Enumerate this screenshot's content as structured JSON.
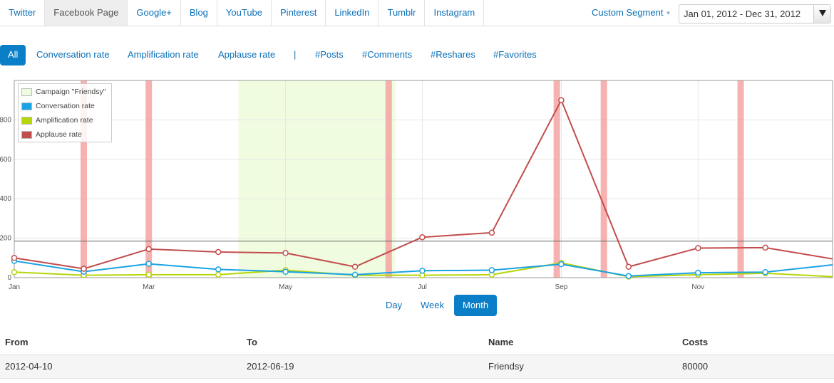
{
  "tabs": [
    {
      "label": "Twitter",
      "active": false
    },
    {
      "label": "Facebook Page",
      "active": true
    },
    {
      "label": "Google+",
      "active": false
    },
    {
      "label": "Blog",
      "active": false
    },
    {
      "label": "YouTube",
      "active": false
    },
    {
      "label": "Pinterest",
      "active": false
    },
    {
      "label": "LinkedIn",
      "active": false
    },
    {
      "label": "Tumblr",
      "active": false
    },
    {
      "label": "Instagram",
      "active": false
    }
  ],
  "segment": {
    "label": "Custom Segment"
  },
  "date_range": {
    "value": "Jan 01, 2012 - Dec 31, 2012"
  },
  "metrics": {
    "all": "All",
    "conversation": "Conversation rate",
    "amplification": "Amplification rate",
    "applause": "Applause rate",
    "separator": "|",
    "posts": "#Posts",
    "comments": "#Comments",
    "reshares": "#Reshares",
    "favorites": "#Favorites"
  },
  "granularity": {
    "day": "Day",
    "week": "Week",
    "month": "Month",
    "active": "Month"
  },
  "colors": {
    "accent": "#0a7fc8",
    "link": "#0a70b7",
    "conversation": "#1aa3e3",
    "amplification": "#b8d40a",
    "applause": "#c24d4d",
    "campaign": "#f0fcdf",
    "event_marker": "#f4a3a3"
  },
  "chart_data": {
    "type": "line",
    "ylim": [
      0,
      1000
    ],
    "yticks": [
      "0",
      "200",
      "400",
      "600",
      "800"
    ],
    "xticks": [
      "Jan",
      "Mar",
      "May",
      "Jul",
      "Sep",
      "Nov"
    ],
    "legend": {
      "campaign": "Campaign \"Friendsy\"",
      "conversation": "Conversation rate",
      "amplification": "Amplification rate",
      "applause": "Applause rate"
    },
    "campaign": {
      "name": "Friendsy",
      "from": "2012-04-10",
      "to": "2012-06-19"
    },
    "event_markers": [
      "2012-02-01",
      "2012-03-01",
      "2012-06-16",
      "2012-08-30",
      "2012-09-20",
      "2012-11-20"
    ],
    "reference_line": 185,
    "series": [
      {
        "name": "Conversation rate",
        "key": "conversation",
        "points": [
          [
            "2012-01-01",
            85
          ],
          [
            "2012-02-01",
            30
          ],
          [
            "2012-03-01",
            70
          ],
          [
            "2012-04-01",
            42
          ],
          [
            "2012-05-01",
            30
          ],
          [
            "2012-06-01",
            15
          ],
          [
            "2012-07-01",
            35
          ],
          [
            "2012-08-01",
            38
          ],
          [
            "2012-09-01",
            68
          ],
          [
            "2012-10-01",
            8
          ],
          [
            "2012-11-01",
            25
          ],
          [
            "2012-12-01",
            28
          ],
          [
            "2012-12-31",
            65
          ]
        ]
      },
      {
        "name": "Amplification rate",
        "key": "amplification",
        "points": [
          [
            "2012-01-01",
            28
          ],
          [
            "2012-02-01",
            12
          ],
          [
            "2012-03-01",
            15
          ],
          [
            "2012-04-01",
            15
          ],
          [
            "2012-05-01",
            38
          ],
          [
            "2012-06-01",
            12
          ],
          [
            "2012-07-01",
            12
          ],
          [
            "2012-08-01",
            15
          ],
          [
            "2012-09-01",
            75
          ],
          [
            "2012-10-01",
            5
          ],
          [
            "2012-11-01",
            15
          ],
          [
            "2012-12-01",
            22
          ],
          [
            "2012-12-31",
            5
          ]
        ]
      },
      {
        "name": "Applause rate",
        "key": "applause",
        "points": [
          [
            "2012-01-01",
            100
          ],
          [
            "2012-02-01",
            45
          ],
          [
            "2012-03-01",
            145
          ],
          [
            "2012-04-01",
            130
          ],
          [
            "2012-05-01",
            125
          ],
          [
            "2012-06-01",
            55
          ],
          [
            "2012-07-01",
            205
          ],
          [
            "2012-08-01",
            228
          ],
          [
            "2012-09-01",
            900
          ],
          [
            "2012-10-01",
            55
          ],
          [
            "2012-11-01",
            150
          ],
          [
            "2012-12-01",
            152
          ],
          [
            "2012-12-31",
            95
          ]
        ]
      }
    ]
  },
  "table": {
    "headers": {
      "from": "From",
      "to": "To",
      "name": "Name",
      "costs": "Costs"
    },
    "rows": [
      {
        "from": "2012-04-10",
        "to": "2012-06-19",
        "name": "Friendsy",
        "costs": "80000"
      }
    ]
  }
}
